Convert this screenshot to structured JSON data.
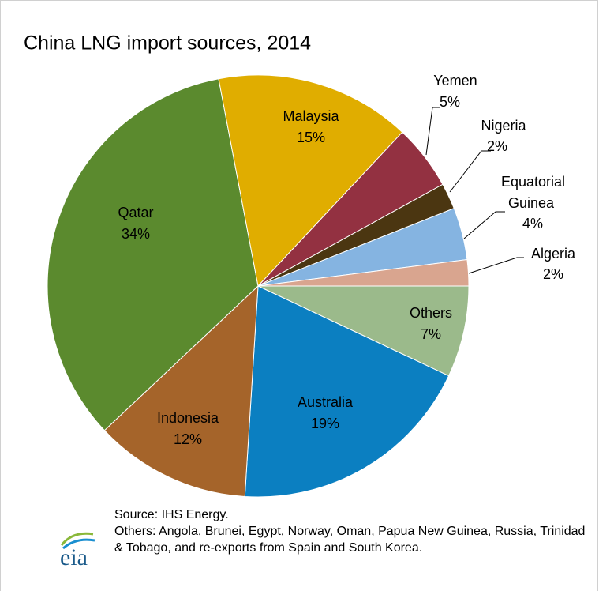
{
  "chart_data": {
    "type": "pie",
    "title": "China LNG import sources, 2014",
    "categories": [
      "Others",
      "Australia",
      "Indonesia",
      "Qatar",
      "Malaysia",
      "Yemen",
      "Nigeria",
      "Equatorial Guinea",
      "Algeria"
    ],
    "values": [
      7,
      19,
      12,
      34,
      15,
      5,
      2,
      4,
      2
    ],
    "value_labels": [
      "7%",
      "19%",
      "12%",
      "34%",
      "15%",
      "5%",
      "2%",
      "4%",
      "2%"
    ],
    "colors": [
      "#9bba8b",
      "#0b7fc1",
      "#a5642a",
      "#5b8a2e",
      "#e0ad00",
      "#933141",
      "#4b3611",
      "#85b4e1",
      "#d9a58f"
    ],
    "source": "Source: IHS Energy.",
    "note": "Others: Angola, Brunei, Egypt, Norway, Oman, Papua New Guinea, Russia, Trinidad & Tobago, and re-exports from Spain and South Korea.",
    "logo": "eia"
  }
}
